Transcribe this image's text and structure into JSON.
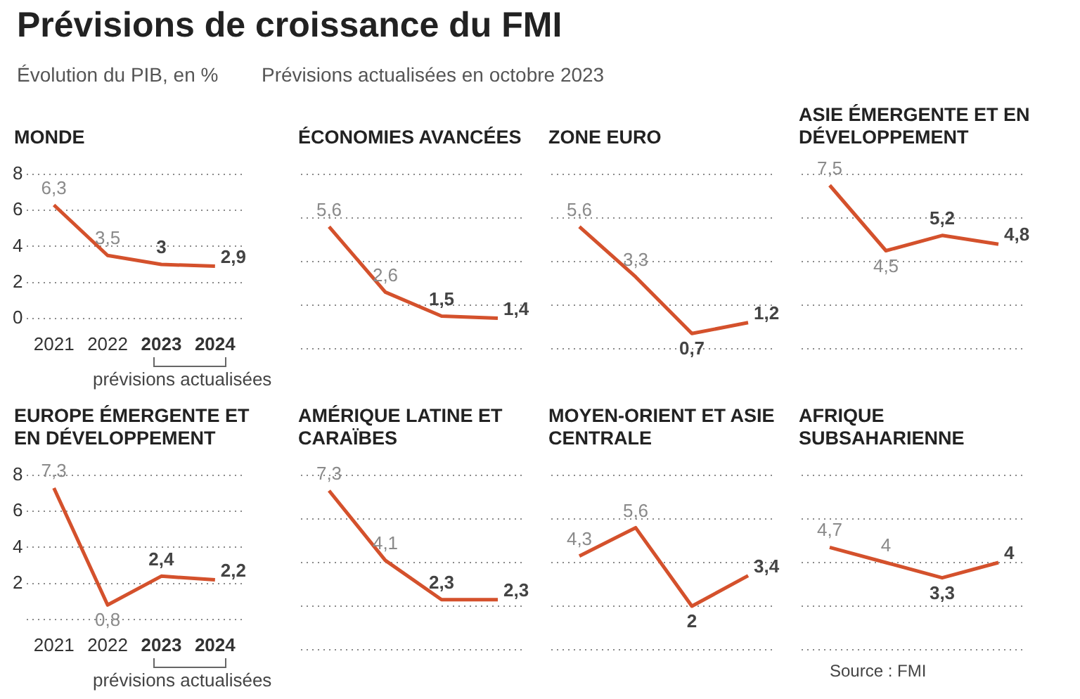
{
  "chart_data": [
    {
      "type": "line",
      "title": "MONDE",
      "categories": [
        "2021",
        "2022",
        "2023",
        "2024"
      ],
      "values": [
        6.3,
        3.5,
        3,
        2.9
      ],
      "value_labels": [
        "6,3",
        "3,5",
        "3",
        "2,9"
      ],
      "color": "#d4512c",
      "ylim": [
        0,
        8
      ],
      "yticks": [
        0,
        2,
        4,
        6,
        8
      ],
      "grid": "y",
      "annotations": [
        "Prévisions de croissance du FMI",
        "Évolution du PIB, en %",
        "Prévisions actualisées en octobre 2023",
        "prévisions actualisées"
      ]
    },
    {
      "type": "line",
      "title": "ÉCONOMIES AVANCÉES",
      "categories": [
        null,
        null,
        null,
        null
      ],
      "values": [
        5.6,
        2.6,
        1.5,
        1.4
      ],
      "value_labels": [
        "5,6",
        "2,6",
        "1,5",
        "1,4"
      ],
      "color": "#d4512c",
      "ylim": [
        0,
        8
      ],
      "yticks": [
        {
          "value": 0,
          "label": null
        },
        {
          "value": 2,
          "label": null
        },
        {
          "value": 4,
          "label": null
        },
        {
          "value": 6,
          "label": null
        },
        {
          "value": 8,
          "label": null
        }
      ],
      "grid": "y"
    },
    {
      "type": "line",
      "title": "ZONE EURO",
      "categories": [
        null,
        null,
        null,
        null
      ],
      "values": [
        5.6,
        3.3,
        0.7,
        1.2
      ],
      "value_labels": [
        "5,6",
        "3,3",
        "0,7",
        "1,2"
      ],
      "color": "#d4512c",
      "ylim": [
        0,
        8
      ],
      "yticks": [
        {
          "value": 0,
          "label": null
        },
        {
          "value": 2,
          "label": null
        },
        {
          "value": 4,
          "label": null
        },
        {
          "value": 6,
          "label": null
        },
        {
          "value": 8,
          "label": null
        }
      ],
      "grid": "y"
    },
    {
      "type": "line",
      "title": "ASIE ÉMERGENTE ET EN DÉVELOPPEMENT",
      "categories": [
        null,
        null,
        null,
        null
      ],
      "values": [
        7.5,
        4.5,
        5.2,
        4.8
      ],
      "value_labels": [
        "7,5",
        "4,5",
        "5,2",
        "4,8"
      ],
      "color": "#d4512c",
      "ylim": [
        0,
        8
      ],
      "yticks": [
        {
          "value": 0,
          "label": null
        },
        {
          "value": 2,
          "label": null
        },
        {
          "value": 4,
          "label": null
        },
        {
          "value": 6,
          "label": null
        },
        {
          "value": 8,
          "label": null
        }
      ],
      "grid": "y"
    },
    {
      "type": "line",
      "title": "EUROPE ÉMERGENTE ET EN DÉVELOPPEMENT",
      "categories": [
        "2021",
        "2022",
        "2023",
        "2024"
      ],
      "values": [
        7.3,
        0.8,
        2.4,
        2.2
      ],
      "value_labels": [
        "7,3",
        "0,8",
        "2,4",
        "2,2"
      ],
      "color": "#d4512c",
      "ylim": [
        0,
        8
      ],
      "yticks": [
        {
          "value": 0,
          "label": null
        },
        2,
        4,
        6,
        8
      ],
      "grid": "y",
      "annotations": [
        "prévisions actualisées"
      ]
    },
    {
      "type": "line",
      "title": "AMÉRIQUE LATINE ET CARAÏBES",
      "categories": [
        null,
        null,
        null,
        null
      ],
      "values": [
        7.3,
        4.1,
        2.3,
        2.3
      ],
      "value_labels": [
        "7,3",
        "4,1",
        "2,3",
        "2,3"
      ],
      "color": "#d4512c",
      "ylim": [
        0,
        8
      ],
      "yticks": [
        {
          "value": 0,
          "label": null
        },
        {
          "value": 2,
          "label": null
        },
        {
          "value": 4,
          "label": null
        },
        {
          "value": 6,
          "label": null
        },
        {
          "value": 8,
          "label": null
        }
      ],
      "grid": "y"
    },
    {
      "type": "line",
      "title": "MOYEN-ORIENT ET ASIE CENTRALE",
      "categories": [
        null,
        null,
        null,
        null
      ],
      "values": [
        4.3,
        5.6,
        2,
        3.4
      ],
      "value_labels": [
        "4,3",
        "5,6",
        "2",
        "3,4"
      ],
      "color": "#d4512c",
      "ylim": [
        0,
        8
      ],
      "yticks": [
        {
          "value": 0,
          "label": null
        },
        {
          "value": 2,
          "label": null
        },
        {
          "value": 4,
          "label": null
        },
        {
          "value": 6,
          "label": null
        },
        {
          "value": 8,
          "label": null
        }
      ],
      "grid": "y"
    },
    {
      "type": "line",
      "title": "AFRIQUE SUBSAHARIENNE",
      "categories": [
        null,
        null,
        null,
        null
      ],
      "values": [
        4.7,
        4,
        3.3,
        4
      ],
      "value_labels": [
        "4,7",
        "4",
        "3,3",
        "4"
      ],
      "color": "#d4512c",
      "ylim": [
        0,
        8
      ],
      "yticks": [
        {
          "value": 0,
          "label": null
        },
        {
          "value": 2,
          "label": null
        },
        {
          "value": 4,
          "label": null
        },
        {
          "value": 6,
          "label": null
        },
        {
          "value": 8,
          "label": null
        }
      ],
      "grid": "y",
      "annotations": [
        "Source : FMI"
      ]
    }
  ]
}
